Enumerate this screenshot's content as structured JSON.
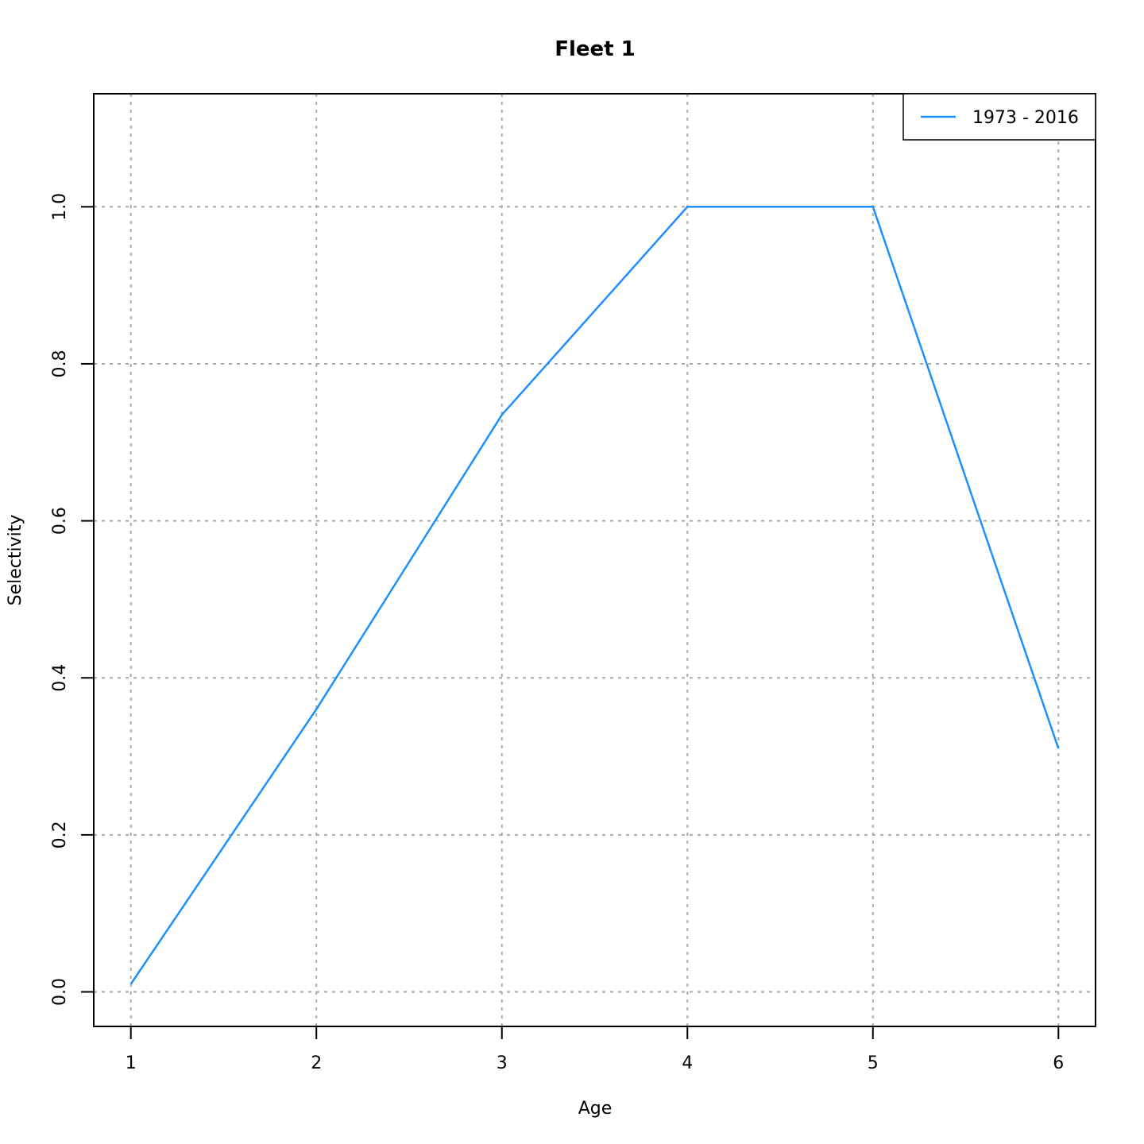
{
  "chart_data": {
    "type": "line",
    "title": "Fleet 1",
    "xlabel": "Age",
    "ylabel": "Selectivity",
    "x": [
      1,
      2,
      3,
      4,
      5,
      6
    ],
    "series": [
      {
        "name": "1973 - 2016",
        "values": [
          0.01,
          0.36,
          0.735,
          1.0,
          1.0,
          0.31
        ],
        "color": "#1e90ff"
      }
    ],
    "xlim": [
      0.8,
      6.2
    ],
    "ylim": [
      -0.044,
      1.144
    ],
    "xticks": [
      1,
      2,
      3,
      4,
      5,
      6
    ],
    "yticks": [
      0.0,
      0.2,
      0.4,
      0.6,
      0.8,
      1.0
    ],
    "ytick_labels": [
      "0.0",
      "0.2",
      "0.4",
      "0.6",
      "0.8",
      "1.0"
    ],
    "grid": true,
    "legend_position": "top-right"
  }
}
